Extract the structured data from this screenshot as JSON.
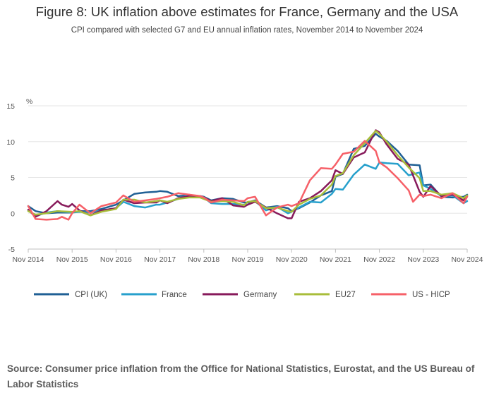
{
  "header": {
    "title": "Figure 8: UK inflation above estimates for France, Germany and the USA",
    "subtitle": "CPI compared with selected G7 and EU annual inflation rates, November 2014 to November 2024"
  },
  "source": "Source: Consumer price inflation from the Office for National Statistics, Eurostat, and the US Bureau of Labor Statistics",
  "chart_data": {
    "type": "line",
    "title": "Figure 8: UK inflation above estimates for France, Germany and the USA",
    "ylabel": "%",
    "xlabel": "",
    "ylim": [
      -5,
      15
    ],
    "yticks": [
      -5,
      0,
      5,
      10,
      15
    ],
    "xlim": [
      2014.833,
      2024.833
    ],
    "xticks": [
      {
        "value": 2014.833,
        "label": "Nov 2014"
      },
      {
        "value": 2015.833,
        "label": "Nov 2015"
      },
      {
        "value": 2016.833,
        "label": "Nov 2016"
      },
      {
        "value": 2017.833,
        "label": "Nov 2017"
      },
      {
        "value": 2018.833,
        "label": "Nov 2018"
      },
      {
        "value": 2019.833,
        "label": "Nov 2019"
      },
      {
        "value": 2020.833,
        "label": "Nov 2020"
      },
      {
        "value": 2021.833,
        "label": "Nov 2021"
      },
      {
        "value": 2022.833,
        "label": "Nov 2022"
      },
      {
        "value": 2023.833,
        "label": "Nov 2023"
      },
      {
        "value": 2024.833,
        "label": "Nov 2024"
      }
    ],
    "grid": true,
    "legend_position": "bottom",
    "series": [
      {
        "name": "CPI (UK)",
        "color": "#206095",
        "points": [
          [
            2014.833,
            1.0
          ],
          [
            2015.0,
            0.3
          ],
          [
            2015.25,
            0.0
          ],
          [
            2015.5,
            0.1
          ],
          [
            2015.833,
            0.1
          ],
          [
            2016.0,
            0.3
          ],
          [
            2016.25,
            0.3
          ],
          [
            2016.5,
            0.6
          ],
          [
            2016.833,
            1.2
          ],
          [
            2017.0,
            1.8
          ],
          [
            2017.25,
            2.7
          ],
          [
            2017.5,
            2.9
          ],
          [
            2017.75,
            3.0
          ],
          [
            2017.833,
            3.1
          ],
          [
            2018.0,
            3.0
          ],
          [
            2018.25,
            2.4
          ],
          [
            2018.5,
            2.5
          ],
          [
            2018.75,
            2.4
          ],
          [
            2018.833,
            2.3
          ],
          [
            2019.0,
            1.8
          ],
          [
            2019.25,
            2.1
          ],
          [
            2019.5,
            2.0
          ],
          [
            2019.75,
            1.5
          ],
          [
            2019.833,
            1.5
          ],
          [
            2020.0,
            1.8
          ],
          [
            2020.25,
            0.8
          ],
          [
            2020.5,
            1.0
          ],
          [
            2020.75,
            0.7
          ],
          [
            2020.833,
            0.3
          ],
          [
            2021.0,
            0.7
          ],
          [
            2021.25,
            1.5
          ],
          [
            2021.5,
            2.5
          ],
          [
            2021.75,
            3.1
          ],
          [
            2021.833,
            5.1
          ],
          [
            2022.0,
            5.5
          ],
          [
            2022.25,
            9.0
          ],
          [
            2022.5,
            9.4
          ],
          [
            2022.75,
            11.1
          ],
          [
            2022.833,
            10.7
          ],
          [
            2023.0,
            10.1
          ],
          [
            2023.25,
            8.7
          ],
          [
            2023.5,
            6.8
          ],
          [
            2023.75,
            6.7
          ],
          [
            2023.833,
            3.9
          ],
          [
            2024.0,
            4.0
          ],
          [
            2024.25,
            2.3
          ],
          [
            2024.5,
            2.2
          ],
          [
            2024.75,
            2.3
          ],
          [
            2024.833,
            2.6
          ]
        ]
      },
      {
        "name": "France",
        "color": "#27a0cc",
        "points": [
          [
            2014.833,
            0.4
          ],
          [
            2015.0,
            -0.4
          ],
          [
            2015.25,
            0.1
          ],
          [
            2015.5,
            0.3
          ],
          [
            2015.833,
            0.1
          ],
          [
            2016.0,
            0.2
          ],
          [
            2016.25,
            0.1
          ],
          [
            2016.5,
            0.4
          ],
          [
            2016.833,
            0.7
          ],
          [
            2017.0,
            1.6
          ],
          [
            2017.25,
            1.0
          ],
          [
            2017.5,
            0.8
          ],
          [
            2017.75,
            1.2
          ],
          [
            2017.833,
            1.2
          ],
          [
            2018.0,
            1.5
          ],
          [
            2018.25,
            2.0
          ],
          [
            2018.5,
            2.6
          ],
          [
            2018.75,
            2.2
          ],
          [
            2018.833,
            2.2
          ],
          [
            2019.0,
            1.4
          ],
          [
            2019.25,
            1.3
          ],
          [
            2019.5,
            1.3
          ],
          [
            2019.75,
            1.2
          ],
          [
            2019.833,
            1.2
          ],
          [
            2020.0,
            1.7
          ],
          [
            2020.25,
            0.4
          ],
          [
            2020.5,
            0.9
          ],
          [
            2020.75,
            0.0
          ],
          [
            2020.833,
            0.2
          ],
          [
            2021.0,
            0.8
          ],
          [
            2021.25,
            1.6
          ],
          [
            2021.5,
            1.5
          ],
          [
            2021.75,
            2.7
          ],
          [
            2021.833,
            3.4
          ],
          [
            2022.0,
            3.3
          ],
          [
            2022.25,
            5.4
          ],
          [
            2022.5,
            6.8
          ],
          [
            2022.75,
            6.2
          ],
          [
            2022.833,
            7.1
          ],
          [
            2023.0,
            7.0
          ],
          [
            2023.25,
            6.9
          ],
          [
            2023.5,
            5.3
          ],
          [
            2023.75,
            5.7
          ],
          [
            2023.833,
            3.9
          ],
          [
            2024.0,
            3.4
          ],
          [
            2024.25,
            2.4
          ],
          [
            2024.5,
            2.5
          ],
          [
            2024.75,
            1.4
          ],
          [
            2024.833,
            1.7
          ]
        ]
      },
      {
        "name": "Germany",
        "color": "#871a5b",
        "points": [
          [
            2014.833,
            0.5
          ],
          [
            2015.0,
            -0.5
          ],
          [
            2015.25,
            0.3
          ],
          [
            2015.5,
            1.7
          ],
          [
            2015.6,
            1.2
          ],
          [
            2015.75,
            0.9
          ],
          [
            2015.833,
            1.3
          ],
          [
            2016.0,
            0.4
          ],
          [
            2016.25,
            -0.3
          ],
          [
            2016.5,
            0.4
          ],
          [
            2016.833,
            0.7
          ],
          [
            2017.0,
            1.9
          ],
          [
            2017.25,
            1.4
          ],
          [
            2017.5,
            1.5
          ],
          [
            2017.75,
            1.5
          ],
          [
            2017.833,
            1.8
          ],
          [
            2018.0,
            1.4
          ],
          [
            2018.25,
            2.1
          ],
          [
            2018.5,
            2.4
          ],
          [
            2018.75,
            2.4
          ],
          [
            2018.833,
            2.2
          ],
          [
            2019.0,
            1.7
          ],
          [
            2019.25,
            2.1
          ],
          [
            2019.5,
            1.1
          ],
          [
            2019.75,
            0.9
          ],
          [
            2019.833,
            1.2
          ],
          [
            2020.0,
            1.6
          ],
          [
            2020.25,
            0.8
          ],
          [
            2020.5,
            0.0
          ],
          [
            2020.75,
            -0.7
          ],
          [
            2020.833,
            -0.7
          ],
          [
            2021.0,
            1.6
          ],
          [
            2021.25,
            2.1
          ],
          [
            2021.5,
            3.1
          ],
          [
            2021.75,
            4.6
          ],
          [
            2021.833,
            6.0
          ],
          [
            2022.0,
            5.5
          ],
          [
            2022.25,
            7.8
          ],
          [
            2022.5,
            8.5
          ],
          [
            2022.75,
            11.6
          ],
          [
            2022.833,
            11.3
          ],
          [
            2023.0,
            9.6
          ],
          [
            2023.25,
            7.6
          ],
          [
            2023.5,
            6.8
          ],
          [
            2023.75,
            3.0
          ],
          [
            2023.833,
            2.3
          ],
          [
            2024.0,
            3.8
          ],
          [
            2024.25,
            2.4
          ],
          [
            2024.5,
            2.6
          ],
          [
            2024.75,
            1.8
          ],
          [
            2024.833,
            2.4
          ]
        ]
      },
      {
        "name": "EU27",
        "color": "#a8bd3a",
        "points": [
          [
            2014.833,
            0.3
          ],
          [
            2015.0,
            -0.2
          ],
          [
            2015.25,
            0.0
          ],
          [
            2015.5,
            0.3
          ],
          [
            2015.833,
            0.2
          ],
          [
            2016.0,
            0.3
          ],
          [
            2016.25,
            -0.3
          ],
          [
            2016.5,
            0.2
          ],
          [
            2016.833,
            0.6
          ],
          [
            2017.0,
            1.9
          ],
          [
            2017.25,
            1.9
          ],
          [
            2017.5,
            1.5
          ],
          [
            2017.75,
            1.7
          ],
          [
            2017.833,
            1.8
          ],
          [
            2018.0,
            1.6
          ],
          [
            2018.25,
            2.0
          ],
          [
            2018.5,
            2.2
          ],
          [
            2018.75,
            2.2
          ],
          [
            2018.833,
            2.0
          ],
          [
            2019.0,
            1.6
          ],
          [
            2019.25,
            1.7
          ],
          [
            2019.5,
            1.6
          ],
          [
            2019.75,
            1.1
          ],
          [
            2019.833,
            1.6
          ],
          [
            2020.0,
            1.7
          ],
          [
            2020.25,
            0.7
          ],
          [
            2020.5,
            0.8
          ],
          [
            2020.75,
            0.3
          ],
          [
            2020.833,
            0.2
          ],
          [
            2021.0,
            1.2
          ],
          [
            2021.25,
            2.0
          ],
          [
            2021.5,
            2.5
          ],
          [
            2021.75,
            4.0
          ],
          [
            2021.833,
            5.2
          ],
          [
            2022.0,
            5.6
          ],
          [
            2022.25,
            8.1
          ],
          [
            2022.5,
            9.8
          ],
          [
            2022.75,
            11.5
          ],
          [
            2022.833,
            11.1
          ],
          [
            2023.0,
            10.0
          ],
          [
            2023.25,
            8.1
          ],
          [
            2023.5,
            6.4
          ],
          [
            2023.75,
            4.9
          ],
          [
            2023.833,
            3.1
          ],
          [
            2024.0,
            3.1
          ],
          [
            2024.25,
            2.6
          ],
          [
            2024.5,
            2.8
          ],
          [
            2024.75,
            2.1
          ],
          [
            2024.833,
            2.5
          ]
        ]
      },
      {
        "name": "US - HICP",
        "color": "#f66068",
        "points": [
          [
            2014.833,
            1.0
          ],
          [
            2015.0,
            -0.8
          ],
          [
            2015.25,
            -0.9
          ],
          [
            2015.5,
            -0.8
          ],
          [
            2015.6,
            -0.5
          ],
          [
            2015.75,
            -0.9
          ],
          [
            2015.833,
            0.0
          ],
          [
            2016.0,
            1.2
          ],
          [
            2016.25,
            0.0
          ],
          [
            2016.5,
            1.0
          ],
          [
            2016.833,
            1.5
          ],
          [
            2017.0,
            2.5
          ],
          [
            2017.25,
            1.6
          ],
          [
            2017.5,
            1.8
          ],
          [
            2017.75,
            2.0
          ],
          [
            2017.833,
            2.1
          ],
          [
            2018.0,
            2.3
          ],
          [
            2018.25,
            2.8
          ],
          [
            2018.5,
            2.6
          ],
          [
            2018.75,
            2.4
          ],
          [
            2018.833,
            2.2
          ],
          [
            2019.0,
            1.5
          ],
          [
            2019.25,
            1.9
          ],
          [
            2019.5,
            1.8
          ],
          [
            2019.75,
            1.7
          ],
          [
            2019.833,
            2.1
          ],
          [
            2020.0,
            2.3
          ],
          [
            2020.25,
            -0.3
          ],
          [
            2020.5,
            0.8
          ],
          [
            2020.75,
            1.2
          ],
          [
            2020.833,
            1.0
          ],
          [
            2021.0,
            1.4
          ],
          [
            2021.25,
            4.6
          ],
          [
            2021.5,
            6.3
          ],
          [
            2021.75,
            6.2
          ],
          [
            2021.833,
            6.8
          ],
          [
            2022.0,
            8.3
          ],
          [
            2022.25,
            8.6
          ],
          [
            2022.5,
            10.1
          ],
          [
            2022.75,
            8.7
          ],
          [
            2022.833,
            7.1
          ],
          [
            2023.0,
            6.4
          ],
          [
            2023.25,
            4.9
          ],
          [
            2023.5,
            3.2
          ],
          [
            2023.6,
            1.6
          ],
          [
            2023.75,
            2.6
          ],
          [
            2023.833,
            2.4
          ],
          [
            2024.0,
            2.6
          ],
          [
            2024.25,
            2.1
          ],
          [
            2024.5,
            2.8
          ],
          [
            2024.75,
            1.4
          ],
          [
            2024.833,
            2.3
          ]
        ]
      }
    ]
  }
}
